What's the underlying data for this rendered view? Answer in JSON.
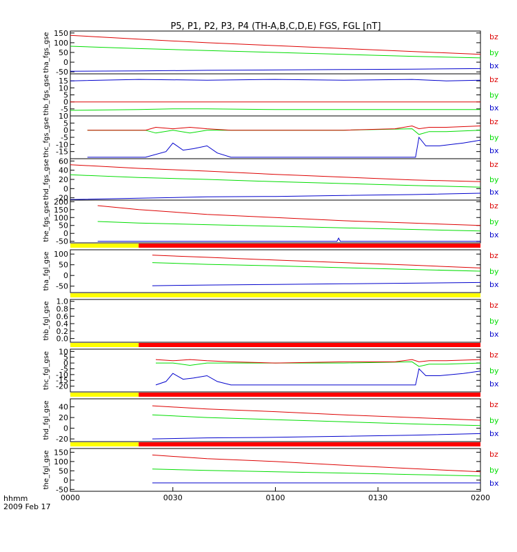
{
  "title": "P5, P1, P2, P3, P4 (TH-A,B,C,D,E) FGS, FGL [nT]",
  "time_axis": {
    "ticks": [
      "0000",
      "0030",
      "0100",
      "0130",
      "0200"
    ],
    "unit_label": "hhmm",
    "date_label": "2009 Feb 17",
    "range_minutes": [
      0,
      120
    ]
  },
  "colors": {
    "bx": "#0000cc",
    "by": "#00dd00",
    "bz": "#dd0000",
    "bar_yellow": "#ffff00",
    "bar_red": "#ff0000"
  },
  "chart_data": [
    {
      "type": "line",
      "ylabel": "tha_fgs_gse",
      "ylim": [
        -60,
        160
      ],
      "yticks": [
        -50,
        0,
        50,
        100,
        150
      ],
      "series": [
        {
          "name": "bx",
          "color": "#0000cc",
          "x": [
            0,
            20,
            40,
            60,
            80,
            100,
            120
          ],
          "values": [
            -47,
            -45,
            -42,
            -40,
            -38,
            -36,
            -33
          ]
        },
        {
          "name": "by",
          "color": "#00dd00",
          "x": [
            0,
            20,
            40,
            60,
            80,
            100,
            120
          ],
          "values": [
            82,
            70,
            60,
            50,
            40,
            30,
            22
          ]
        },
        {
          "name": "bz",
          "color": "#dd0000",
          "x": [
            0,
            20,
            40,
            60,
            80,
            100,
            120
          ],
          "values": [
            138,
            118,
            100,
            85,
            70,
            55,
            40
          ]
        }
      ]
    },
    {
      "type": "line",
      "ylabel": "thb_fgs_gse",
      "ylim": [
        -10,
        20
      ],
      "yticks": [
        -5,
        0,
        5,
        10,
        15
      ],
      "series": [
        {
          "name": "bx",
          "color": "#0000cc",
          "x": [
            0,
            20,
            40,
            60,
            80,
            100,
            110,
            120
          ],
          "values": [
            15,
            16,
            15.5,
            16,
            15.5,
            16,
            15,
            15.5
          ]
        },
        {
          "name": "by",
          "color": "#00dd00",
          "x": [
            0,
            20,
            30,
            40,
            60,
            80,
            100,
            120
          ],
          "values": [
            -6,
            -5.5,
            -5,
            -5,
            -5.5,
            -5.5,
            -5.5,
            -5.5
          ]
        },
        {
          "name": "bz",
          "color": "#dd0000",
          "x": [
            0,
            20,
            40,
            60,
            80,
            100,
            120
          ],
          "values": [
            0,
            0,
            0,
            0,
            0,
            0,
            0
          ]
        }
      ]
    },
    {
      "type": "line",
      "ylabel": "thc_fgs_gse",
      "ylim": [
        -20,
        10
      ],
      "yticks": [
        -15,
        -10,
        -5,
        0,
        5,
        10
      ],
      "series": [
        {
          "name": "bx",
          "color": "#0000cc",
          "x": [
            5,
            22,
            28,
            30,
            33,
            36,
            40,
            43,
            47,
            60,
            80,
            101,
            102,
            104,
            108,
            115,
            120
          ],
          "values": [
            -19,
            -19,
            -15,
            -9,
            -14,
            -13,
            -11,
            -16,
            -19,
            -19,
            -19,
            -19,
            -5,
            -11,
            -11,
            -9,
            -7
          ]
        },
        {
          "name": "by",
          "color": "#00dd00",
          "x": [
            5,
            22,
            25,
            30,
            35,
            40,
            47,
            60,
            80,
            100,
            102,
            105,
            110,
            120
          ],
          "values": [
            0,
            0,
            -2,
            0,
            -2,
            0,
            0,
            0,
            0,
            1,
            -3,
            -1,
            -1,
            0
          ]
        },
        {
          "name": "bz",
          "color": "#dd0000",
          "x": [
            5,
            22,
            25,
            30,
            35,
            40,
            47,
            60,
            80,
            95,
            100,
            102,
            105,
            110,
            120
          ],
          "values": [
            0,
            0,
            2,
            1,
            2,
            1,
            0,
            0,
            0,
            1,
            3,
            1,
            2,
            2,
            3
          ]
        }
      ]
    },
    {
      "type": "line",
      "ylabel": "thd_fgs_gse",
      "ylim": [
        -25,
        65
      ],
      "yticks": [
        -20,
        0,
        20,
        40,
        60
      ],
      "series": [
        {
          "name": "bx",
          "color": "#0000cc",
          "x": [
            0,
            20,
            40,
            60,
            80,
            100,
            120
          ],
          "values": [
            -24,
            -21,
            -18,
            -17,
            -15,
            -13,
            -10
          ]
        },
        {
          "name": "by",
          "color": "#00dd00",
          "x": [
            0,
            20,
            40,
            60,
            80,
            100,
            120
          ],
          "values": [
            30,
            24,
            20,
            15,
            11,
            7,
            3
          ]
        },
        {
          "name": "bz",
          "color": "#dd0000",
          "x": [
            0,
            20,
            40,
            60,
            80,
            100,
            120
          ],
          "values": [
            52,
            44,
            38,
            31,
            25,
            19,
            15
          ]
        }
      ]
    },
    {
      "type": "line",
      "ylabel": "the_fgs_gse",
      "ylim": [
        -60,
        210
      ],
      "yticks": [
        -50,
        0,
        50,
        100,
        150,
        200
      ],
      "series": [
        {
          "name": "bx",
          "color": "#0000cc",
          "x": [
            8,
            40,
            78,
            78.5,
            79,
            100,
            120
          ],
          "values": [
            -50,
            -50,
            -50,
            -30,
            -50,
            -50,
            -50
          ]
        },
        {
          "name": "by",
          "color": "#00dd00",
          "x": [
            8,
            20,
            40,
            60,
            80,
            100,
            120
          ],
          "values": [
            75,
            65,
            55,
            45,
            35,
            25,
            15
          ]
        },
        {
          "name": "bz",
          "color": "#dd0000",
          "x": [
            8,
            20,
            40,
            60,
            80,
            100,
            120
          ],
          "values": [
            175,
            150,
            120,
            100,
            80,
            65,
            50
          ]
        }
      ]
    },
    {
      "type": "line",
      "ylabel": "tha_fgl_gse",
      "ylim": [
        -80,
        120
      ],
      "yticks": [
        -50,
        0,
        50,
        100
      ],
      "series": [
        {
          "name": "bx",
          "color": "#0000cc",
          "x": [
            24,
            40,
            60,
            80,
            100,
            120
          ],
          "values": [
            -48,
            -45,
            -42,
            -39,
            -36,
            -33
          ]
        },
        {
          "name": "by",
          "color": "#00dd00",
          "x": [
            24,
            40,
            60,
            80,
            100,
            120
          ],
          "values": [
            60,
            52,
            45,
            36,
            28,
            20
          ]
        },
        {
          "name": "bz",
          "color": "#dd0000",
          "x": [
            24,
            40,
            60,
            80,
            100,
            120
          ],
          "values": [
            95,
            85,
            72,
            60,
            48,
            35
          ]
        }
      ]
    },
    {
      "type": "line",
      "ylabel": "thb_fgl_gse",
      "ylim": [
        -0.1,
        1.05
      ],
      "yticks": [
        0,
        0.2,
        0.4,
        0.6,
        0.8,
        1
      ],
      "yticklabels": [
        "0.0",
        "0.2",
        "0.4",
        "0.6",
        "0.8",
        "1.0"
      ],
      "series": []
    },
    {
      "type": "line",
      "ylabel": "thc_fgl_gse",
      "ylim": [
        -25,
        12
      ],
      "yticks": [
        -20,
        -15,
        -10,
        -5,
        0,
        5,
        10
      ],
      "series": [
        {
          "name": "bx",
          "color": "#0000cc",
          "x": [
            25,
            28,
            30,
            33,
            36,
            40,
            43,
            47,
            60,
            80,
            101,
            102,
            104,
            108,
            115,
            120
          ],
          "values": [
            -19,
            -16,
            -9,
            -14,
            -13,
            -11,
            -16,
            -19,
            -19,
            -19,
            -19,
            -5,
            -11,
            -11,
            -9,
            -7
          ]
        },
        {
          "name": "by",
          "color": "#00dd00",
          "x": [
            25,
            30,
            35,
            40,
            47,
            60,
            80,
            100,
            102,
            105,
            110,
            120
          ],
          "values": [
            0,
            0,
            -2,
            0,
            0,
            0,
            0,
            1,
            -3,
            -1,
            -1,
            0
          ]
        },
        {
          "name": "bz",
          "color": "#dd0000",
          "x": [
            25,
            30,
            35,
            40,
            47,
            60,
            80,
            95,
            100,
            102,
            105,
            110,
            120
          ],
          "values": [
            3,
            2,
            3,
            2,
            1,
            0,
            1,
            1,
            3,
            1,
            2,
            2,
            3
          ]
        }
      ]
    },
    {
      "type": "line",
      "ylabel": "thd_fgl_gse",
      "ylim": [
        -25,
        55
      ],
      "yticks": [
        -20,
        0,
        20,
        40
      ],
      "series": [
        {
          "name": "bx",
          "color": "#0000cc",
          "x": [
            24,
            40,
            60,
            80,
            100,
            120
          ],
          "values": [
            -20,
            -18,
            -17,
            -15,
            -13,
            -10
          ]
        },
        {
          "name": "by",
          "color": "#00dd00",
          "x": [
            24,
            40,
            60,
            80,
            100,
            120
          ],
          "values": [
            25,
            20,
            16,
            12,
            8,
            5
          ]
        },
        {
          "name": "bz",
          "color": "#dd0000",
          "x": [
            24,
            40,
            60,
            80,
            100,
            120
          ],
          "values": [
            42,
            36,
            31,
            25,
            20,
            15
          ]
        }
      ]
    },
    {
      "type": "line",
      "ylabel": "the_fgl_gse",
      "ylim": [
        -60,
        170
      ],
      "yticks": [
        -50,
        0,
        50,
        100,
        150
      ],
      "series": [
        {
          "name": "bx",
          "color": "#0000cc",
          "x": [
            24,
            60,
            80,
            100,
            120
          ],
          "values": [
            -15,
            -15,
            -15,
            -15,
            -15
          ]
        },
        {
          "name": "by",
          "color": "#00dd00",
          "x": [
            24,
            40,
            60,
            80,
            100,
            120
          ],
          "values": [
            60,
            52,
            45,
            38,
            30,
            22
          ]
        },
        {
          "name": "bz",
          "color": "#dd0000",
          "x": [
            24,
            40,
            60,
            80,
            100,
            120
          ],
          "values": [
            135,
            115,
            100,
            80,
            62,
            45
          ]
        }
      ]
    }
  ],
  "status_bars": [
    {
      "after_panel": 4,
      "segments": [
        {
          "color": "#ffff00",
          "x_range": [
            0,
            20
          ]
        },
        {
          "color": "#ff0000",
          "x_range": [
            20,
            120
          ]
        }
      ]
    },
    {
      "after_panel": 5,
      "segments": [
        {
          "color": "#ffff00",
          "x_range": [
            0,
            120
          ]
        }
      ]
    },
    {
      "after_panel": 6,
      "segments": [
        {
          "color": "#ffff00",
          "x_range": [
            0,
            20
          ]
        },
        {
          "color": "#ff0000",
          "x_range": [
            20,
            120
          ]
        }
      ]
    },
    {
      "after_panel": 7,
      "segments": [
        {
          "color": "#ffff00",
          "x_range": [
            0,
            20
          ]
        },
        {
          "color": "#ff0000",
          "x_range": [
            20,
            120
          ]
        }
      ]
    },
    {
      "after_panel": 8,
      "segments": [
        {
          "color": "#ffff00",
          "x_range": [
            0,
            20
          ]
        },
        {
          "color": "#ff0000",
          "x_range": [
            20,
            120
          ]
        }
      ]
    }
  ],
  "legend_labels": [
    "bz",
    "by",
    "bx"
  ]
}
